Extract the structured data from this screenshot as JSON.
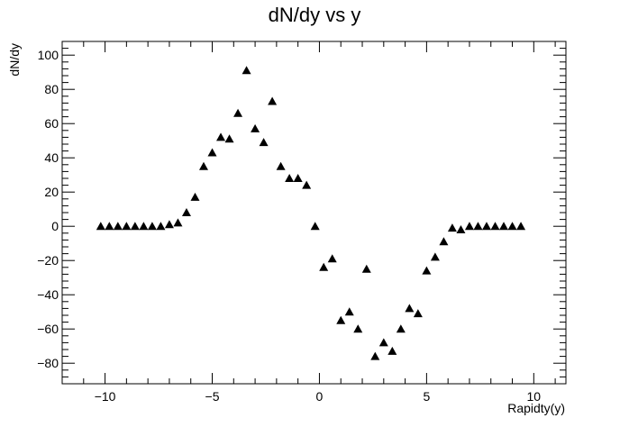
{
  "chart_data": {
    "type": "scatter",
    "title": "dN/dy vs y",
    "xlabel": "Rapidty(y)",
    "ylabel": "dN/dy",
    "xlim": [
      -12,
      11.5
    ],
    "ylim": [
      -92,
      108
    ],
    "xticks": [
      -10,
      -5,
      0,
      5,
      10
    ],
    "yticks": [
      -80,
      -60,
      -40,
      -20,
      0,
      20,
      40,
      60,
      80,
      100
    ],
    "marker": "filled-triangle",
    "color": "#000000",
    "grid": false,
    "legend": "none",
    "series": [
      {
        "points": [
          [
            -10.2,
            0
          ],
          [
            -9.8,
            0
          ],
          [
            -9.4,
            0
          ],
          [
            -9.0,
            0
          ],
          [
            -8.6,
            0
          ],
          [
            -8.2,
            0
          ],
          [
            -7.8,
            0
          ],
          [
            -7.4,
            0
          ],
          [
            -7.0,
            1
          ],
          [
            -6.6,
            2
          ],
          [
            -6.2,
            8
          ],
          [
            -5.8,
            17
          ],
          [
            -5.4,
            35
          ],
          [
            -5.0,
            43
          ],
          [
            -4.6,
            52
          ],
          [
            -4.2,
            51
          ],
          [
            -3.8,
            66
          ],
          [
            -3.4,
            91
          ],
          [
            -3.0,
            57
          ],
          [
            -2.6,
            49
          ],
          [
            -2.2,
            73
          ],
          [
            -1.8,
            35
          ],
          [
            -1.4,
            28
          ],
          [
            -1.0,
            28
          ],
          [
            -0.6,
            24
          ],
          [
            -0.2,
            0
          ],
          [
            0.2,
            -24
          ],
          [
            0.6,
            -19
          ],
          [
            1.0,
            -55
          ],
          [
            1.4,
            -50
          ],
          [
            1.8,
            -60
          ],
          [
            2.2,
            -25
          ],
          [
            2.6,
            -76
          ],
          [
            3.0,
            -68
          ],
          [
            3.4,
            -73
          ],
          [
            3.8,
            -60
          ],
          [
            4.2,
            -48
          ],
          [
            4.6,
            -51
          ],
          [
            5.0,
            -26
          ],
          [
            5.4,
            -18
          ],
          [
            5.8,
            -9
          ],
          [
            6.2,
            -1
          ],
          [
            6.6,
            -2
          ],
          [
            7.0,
            0
          ],
          [
            7.4,
            0
          ],
          [
            7.8,
            0
          ],
          [
            8.2,
            0
          ],
          [
            8.6,
            0
          ],
          [
            9.0,
            0
          ],
          [
            9.4,
            0
          ]
        ]
      }
    ]
  }
}
